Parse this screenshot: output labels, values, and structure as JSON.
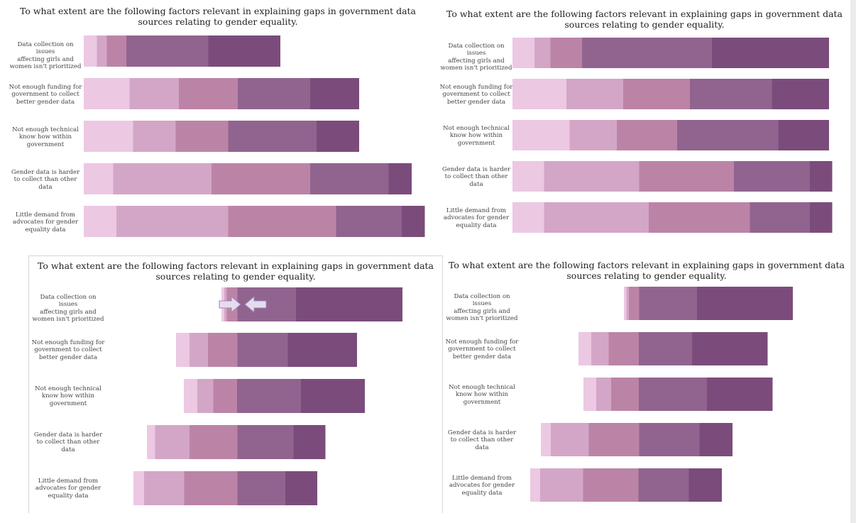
{
  "colors": [
    "#ecc8e3",
    "#d3a6c7",
    "#bb84a7",
    "#91648f",
    "#7b4c7b"
  ],
  "chart_data": [
    {
      "type": "stacked-bar-horizontal",
      "title": "To what extent are the following factors relevant in explaining gaps in government data sources relating to gender equality.",
      "categories": [
        "Data collection on issues affecting girls and women isn't prioritized",
        "Not enough funding for government to collect better gender data",
        "Not enough technical know how within government",
        "Gender data is harder to collect than other data",
        "Little demand from advocates for gender equality data"
      ],
      "rows": [
        [
          4,
          3,
          6,
          25,
          22
        ],
        [
          14,
          15,
          18,
          22,
          15
        ],
        [
          15,
          13,
          16,
          27,
          13
        ],
        [
          9,
          30,
          30,
          24,
          7
        ],
        [
          10,
          34,
          33,
          20,
          7
        ]
      ],
      "max": 100,
      "align": "left"
    },
    {
      "type": "stacked-bar-horizontal",
      "title": "To what extent are the following factors relevant in explaining gaps in government data sources relating to gender equality.",
      "categories": [
        "Data collection on issues affecting girls and women isn't prioritized",
        "Not enough funding for government to collect better gender data",
        "Not enough technical know how within government",
        "Gender data is harder to collect than other data",
        "Little demand from advocates for gender equality data"
      ],
      "rows": [
        [
          7,
          5,
          10,
          41,
          37
        ],
        [
          17,
          18,
          21,
          26,
          18
        ],
        [
          18,
          15,
          19,
          32,
          16
        ],
        [
          10,
          30,
          30,
          24,
          7
        ],
        [
          10,
          33,
          32,
          19,
          7
        ]
      ],
      "max": 100,
      "align": "left"
    },
    {
      "type": "stacked-bar-horizontal",
      "title": "To what extent are the following factors relevant in explaining gaps in government data sources relating to gender equality.",
      "categories": [
        "Data collection on issues affecting girls and women isn't prioritized",
        "Not enough funding for government to collect better gender data",
        "Not enough technical know how within government",
        "Gender data is harder to collect than other data",
        "Little demand from advocates for gender equality data"
      ],
      "rows": [
        [
          1,
          1,
          4,
          22,
          40
        ],
        [
          5,
          7,
          11,
          19,
          26
        ],
        [
          5,
          6,
          9,
          24,
          24
        ],
        [
          3,
          13,
          18,
          21,
          12
        ],
        [
          4,
          15,
          20,
          18,
          12
        ]
      ],
      "max": 100,
      "align": "diverging",
      "arrows": [
        "right",
        "left"
      ]
    },
    {
      "type": "stacked-bar-horizontal",
      "title": "To what extent are the following factors relevant in explaining gaps in government data sources relating to gender equality.",
      "categories": [
        "Data collection on issues affecting girls and women isn't prioritized",
        "Not enough funding for government to collect better gender data",
        "Not enough technical know how within government",
        "Gender data is harder to collect than other data",
        "Little demand from advocates for gender equality data"
      ],
      "rows": [
        [
          1,
          1,
          4,
          23,
          38
        ],
        [
          5,
          7,
          12,
          21,
          30
        ],
        [
          5,
          6,
          11,
          27,
          26
        ],
        [
          4,
          15,
          20,
          24,
          13
        ],
        [
          4,
          17,
          22,
          20,
          13
        ]
      ],
      "max": 100,
      "align": "diverging"
    }
  ]
}
